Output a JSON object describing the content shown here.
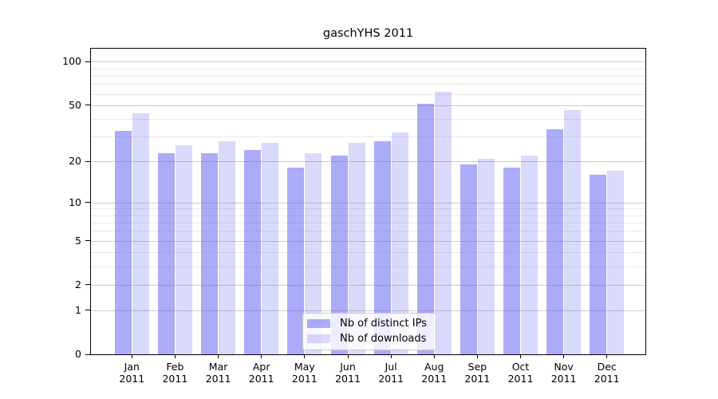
{
  "chart_data": {
    "type": "bar",
    "title": "gaschYHS 2011",
    "xlabel": "",
    "ylabel": "",
    "x_month_labels": [
      "Jan",
      "Feb",
      "Mar",
      "Apr",
      "May",
      "Jun",
      "Jul",
      "Aug",
      "Sep",
      "Oct",
      "Nov",
      "Dec"
    ],
    "x_year_label": "2011",
    "series": [
      {
        "name": "Nb of distinct IPs",
        "color": "rgba(102,102,242,0.55)",
        "color_solid_on_white": "#aaaaf6",
        "values": [
          33,
          23,
          23,
          24,
          18,
          22,
          28,
          51,
          19,
          18,
          34,
          16
        ]
      },
      {
        "name": "Nb of downloads",
        "color": "rgba(102,102,242,0.25)",
        "color_solid_on_white": "#dbdbfa",
        "values": [
          44,
          26,
          28,
          27,
          23,
          27,
          32,
          62,
          21,
          22,
          46,
          17
        ]
      }
    ],
    "yscale": "log1p",
    "ylim": [
      0,
      125
    ],
    "yticks": [
      0,
      1,
      2,
      5,
      10,
      20,
      50,
      100
    ],
    "yticks_minor": [
      3,
      4,
      6,
      7,
      8,
      9,
      30,
      40,
      60,
      70,
      80,
      90
    ],
    "grid": "both",
    "grid_major_color": "#cbcbcb",
    "grid_minor_color": "#e9e9e9",
    "legend_position": "lower center",
    "spine_color": "#000000",
    "background_color": "#ffffff"
  }
}
